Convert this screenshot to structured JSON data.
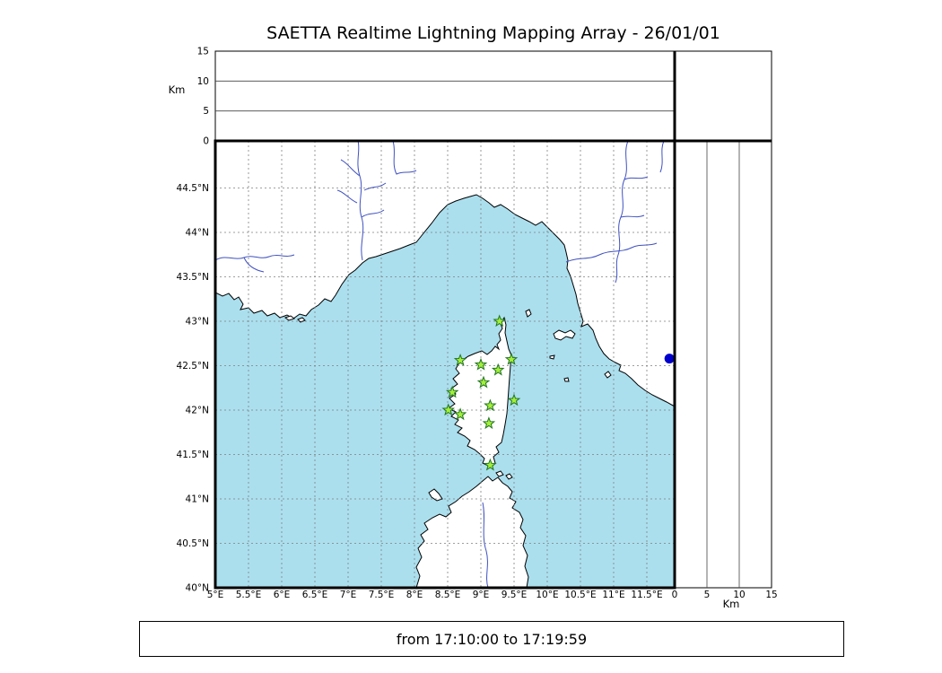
{
  "title": "SAETTA Realtime Lightning Mapping Array - 26/01/01",
  "footer": {
    "text": "from 17:10:00 to 17:19:59"
  },
  "colors": {
    "sea": "#abdfee",
    "land": "#ffffff",
    "coast": "#000000",
    "river": "#3f51c1",
    "grid": "#808080",
    "station_fill": "#a4ef3c",
    "station_edge": "#207520",
    "lake": "#0000cc"
  },
  "map_axes": {
    "lon_ticks": [
      {
        "v": 5,
        "label": "5°E"
      },
      {
        "v": 5.5,
        "label": "5.5°E"
      },
      {
        "v": 6,
        "label": "6°E"
      },
      {
        "v": 6.5,
        "label": "6.5°E"
      },
      {
        "v": 7,
        "label": "7°E"
      },
      {
        "v": 7.5,
        "label": "7.5°E"
      },
      {
        "v": 8,
        "label": "8°E"
      },
      {
        "v": 8.5,
        "label": "8.5°E"
      },
      {
        "v": 9,
        "label": "9°E"
      },
      {
        "v": 9.5,
        "label": "9.5°E"
      },
      {
        "v": 10,
        "label": "10°E"
      },
      {
        "v": 10.5,
        "label": "10.5°E"
      },
      {
        "v": 11,
        "label": "11°E"
      },
      {
        "v": 11.5,
        "label": "11.5°E"
      }
    ],
    "lat_ticks": [
      {
        "v": 44.5,
        "label": "44.5°N"
      },
      {
        "v": 44,
        "label": "44°N"
      },
      {
        "v": 43.5,
        "label": "43.5°N"
      },
      {
        "v": 43,
        "label": "43°N"
      },
      {
        "v": 42.5,
        "label": "42.5°N"
      },
      {
        "v": 42,
        "label": "42°N"
      },
      {
        "v": 41.5,
        "label": "41.5°N"
      },
      {
        "v": 41,
        "label": "41°N"
      },
      {
        "v": 40.5,
        "label": "40.5°N"
      },
      {
        "v": 40,
        "label": "40°N"
      }
    ]
  },
  "altitude_axis": {
    "unit_label": "Km",
    "max": 15,
    "ticks": [
      {
        "v": 0,
        "label": "0"
      },
      {
        "v": 5,
        "label": "5"
      },
      {
        "v": 10,
        "label": "10"
      },
      {
        "v": 15,
        "label": "15"
      }
    ],
    "gridline_values": [
      5,
      10
    ]
  },
  "stations": [
    {
      "lon": 9.28,
      "lat": 43.0
    },
    {
      "lon": 8.69,
      "lat": 42.56
    },
    {
      "lon": 9.0,
      "lat": 42.51
    },
    {
      "lon": 9.46,
      "lat": 42.57
    },
    {
      "lon": 9.26,
      "lat": 42.45
    },
    {
      "lon": 9.04,
      "lat": 42.31
    },
    {
      "lon": 8.57,
      "lat": 42.2
    },
    {
      "lon": 9.5,
      "lat": 42.11
    },
    {
      "lon": 8.51,
      "lat": 42.0
    },
    {
      "lon": 8.69,
      "lat": 41.95
    },
    {
      "lon": 9.14,
      "lat": 42.05
    },
    {
      "lon": 9.12,
      "lat": 41.85
    },
    {
      "lon": 9.14,
      "lat": 41.38
    }
  ],
  "lake": {
    "lon": 11.84,
    "lat": 42.58
  }
}
